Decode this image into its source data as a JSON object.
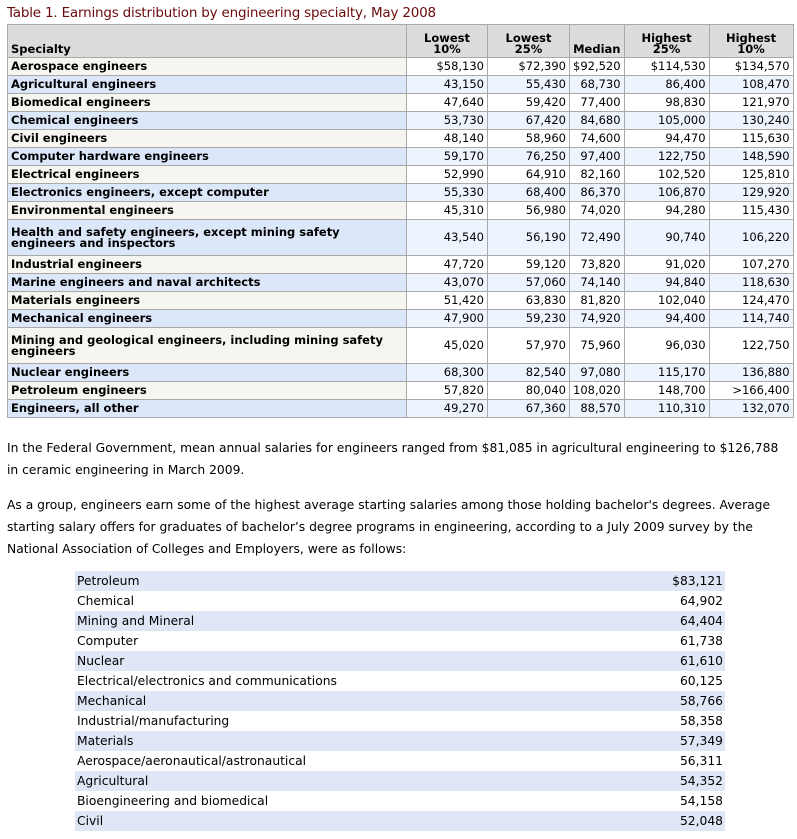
{
  "table1": {
    "title": "Table 1. Earnings distribution by engineering specialty, May 2008",
    "headers": [
      "Specialty",
      "Lowest\n10%",
      "Lowest\n25%",
      "Median",
      "Highest\n25%",
      "Highest\n10%"
    ],
    "rows": [
      [
        "Aerospace engineers",
        "$58,130",
        "$72,390",
        "$92,520",
        "$114,530",
        "$134,570"
      ],
      [
        "Agricultural engineers",
        "43,150",
        "55,430",
        "68,730",
        "86,400",
        "108,470"
      ],
      [
        "Biomedical engineers",
        "47,640",
        "59,420",
        "77,400",
        "98,830",
        "121,970"
      ],
      [
        "Chemical engineers",
        "53,730",
        "67,420",
        "84,680",
        "105,000",
        "130,240"
      ],
      [
        "Civil engineers",
        "48,140",
        "58,960",
        "74,600",
        "94,470",
        "115,630"
      ],
      [
        "Computer hardware engineers",
        "59,170",
        "76,250",
        "97,400",
        "122,750",
        "148,590"
      ],
      [
        "Electrical engineers",
        "52,990",
        "64,910",
        "82,160",
        "102,520",
        "125,810"
      ],
      [
        "Electronics engineers, except computer",
        "55,330",
        "68,400",
        "86,370",
        "106,870",
        "129,920"
      ],
      [
        "Environmental engineers",
        "45,310",
        "56,980",
        "74,020",
        "94,280",
        "115,430"
      ],
      [
        "Health and safety engineers, except mining safety engineers and inspectors",
        "43,540",
        "56,190",
        "72,490",
        "90,740",
        "106,220"
      ],
      [
        "Industrial engineers",
        "47,720",
        "59,120",
        "73,820",
        "91,020",
        "107,270"
      ],
      [
        "Marine engineers and naval architects",
        "43,070",
        "57,060",
        "74,140",
        "94,840",
        "118,630"
      ],
      [
        "Materials engineers",
        "51,420",
        "63,830",
        "81,820",
        "102,040",
        "124,470"
      ],
      [
        "Mechanical engineers",
        "47,900",
        "59,230",
        "74,920",
        "94,400",
        "114,740"
      ],
      [
        "Mining and geological engineers, including mining safety engineers",
        "45,020",
        "57,970",
        "75,960",
        "96,030",
        "122,750"
      ],
      [
        "Nuclear engineers",
        "68,300",
        "82,540",
        "97,080",
        "115,170",
        "136,880"
      ],
      [
        "Petroleum engineers",
        "57,820",
        "80,040",
        "108,020",
        "148,700",
        ">166,400"
      ],
      [
        "Engineers, all other",
        "49,270",
        "67,360",
        "88,570",
        "110,310",
        "132,070"
      ]
    ]
  },
  "paragraphs": [
    "In the Federal Government, mean annual salaries for engineers ranged from $81,085 in agricultural engineering to $126,788 in ceramic engineering in March 2009.",
    "As a group, engineers earn some of the highest average starting salaries among those holding bachelor's degrees. Average starting salary offers for graduates of bachelor’s degree programs in engineering, according to a July 2009 survey by the National Association of Colleges and Employers, were as follows:"
  ],
  "table2": [
    [
      "Petroleum",
      "$83,121"
    ],
    [
      "Chemical",
      "64,902"
    ],
    [
      "Mining and Mineral",
      "64,404"
    ],
    [
      "Computer",
      "61,738"
    ],
    [
      "Nuclear",
      "61,610"
    ],
    [
      "Electrical/electronics and communications",
      "60,125"
    ],
    [
      "Mechanical",
      "58,766"
    ],
    [
      "Industrial/manufacturing",
      "58,358"
    ],
    [
      "Materials",
      "57,349"
    ],
    [
      "Aerospace/aeronautical/astronautical",
      "56,311"
    ],
    [
      "Agricultural",
      "54,352"
    ],
    [
      "Bioengineering and biomedical",
      "54,158"
    ],
    [
      "Civil",
      "52,048"
    ]
  ]
}
